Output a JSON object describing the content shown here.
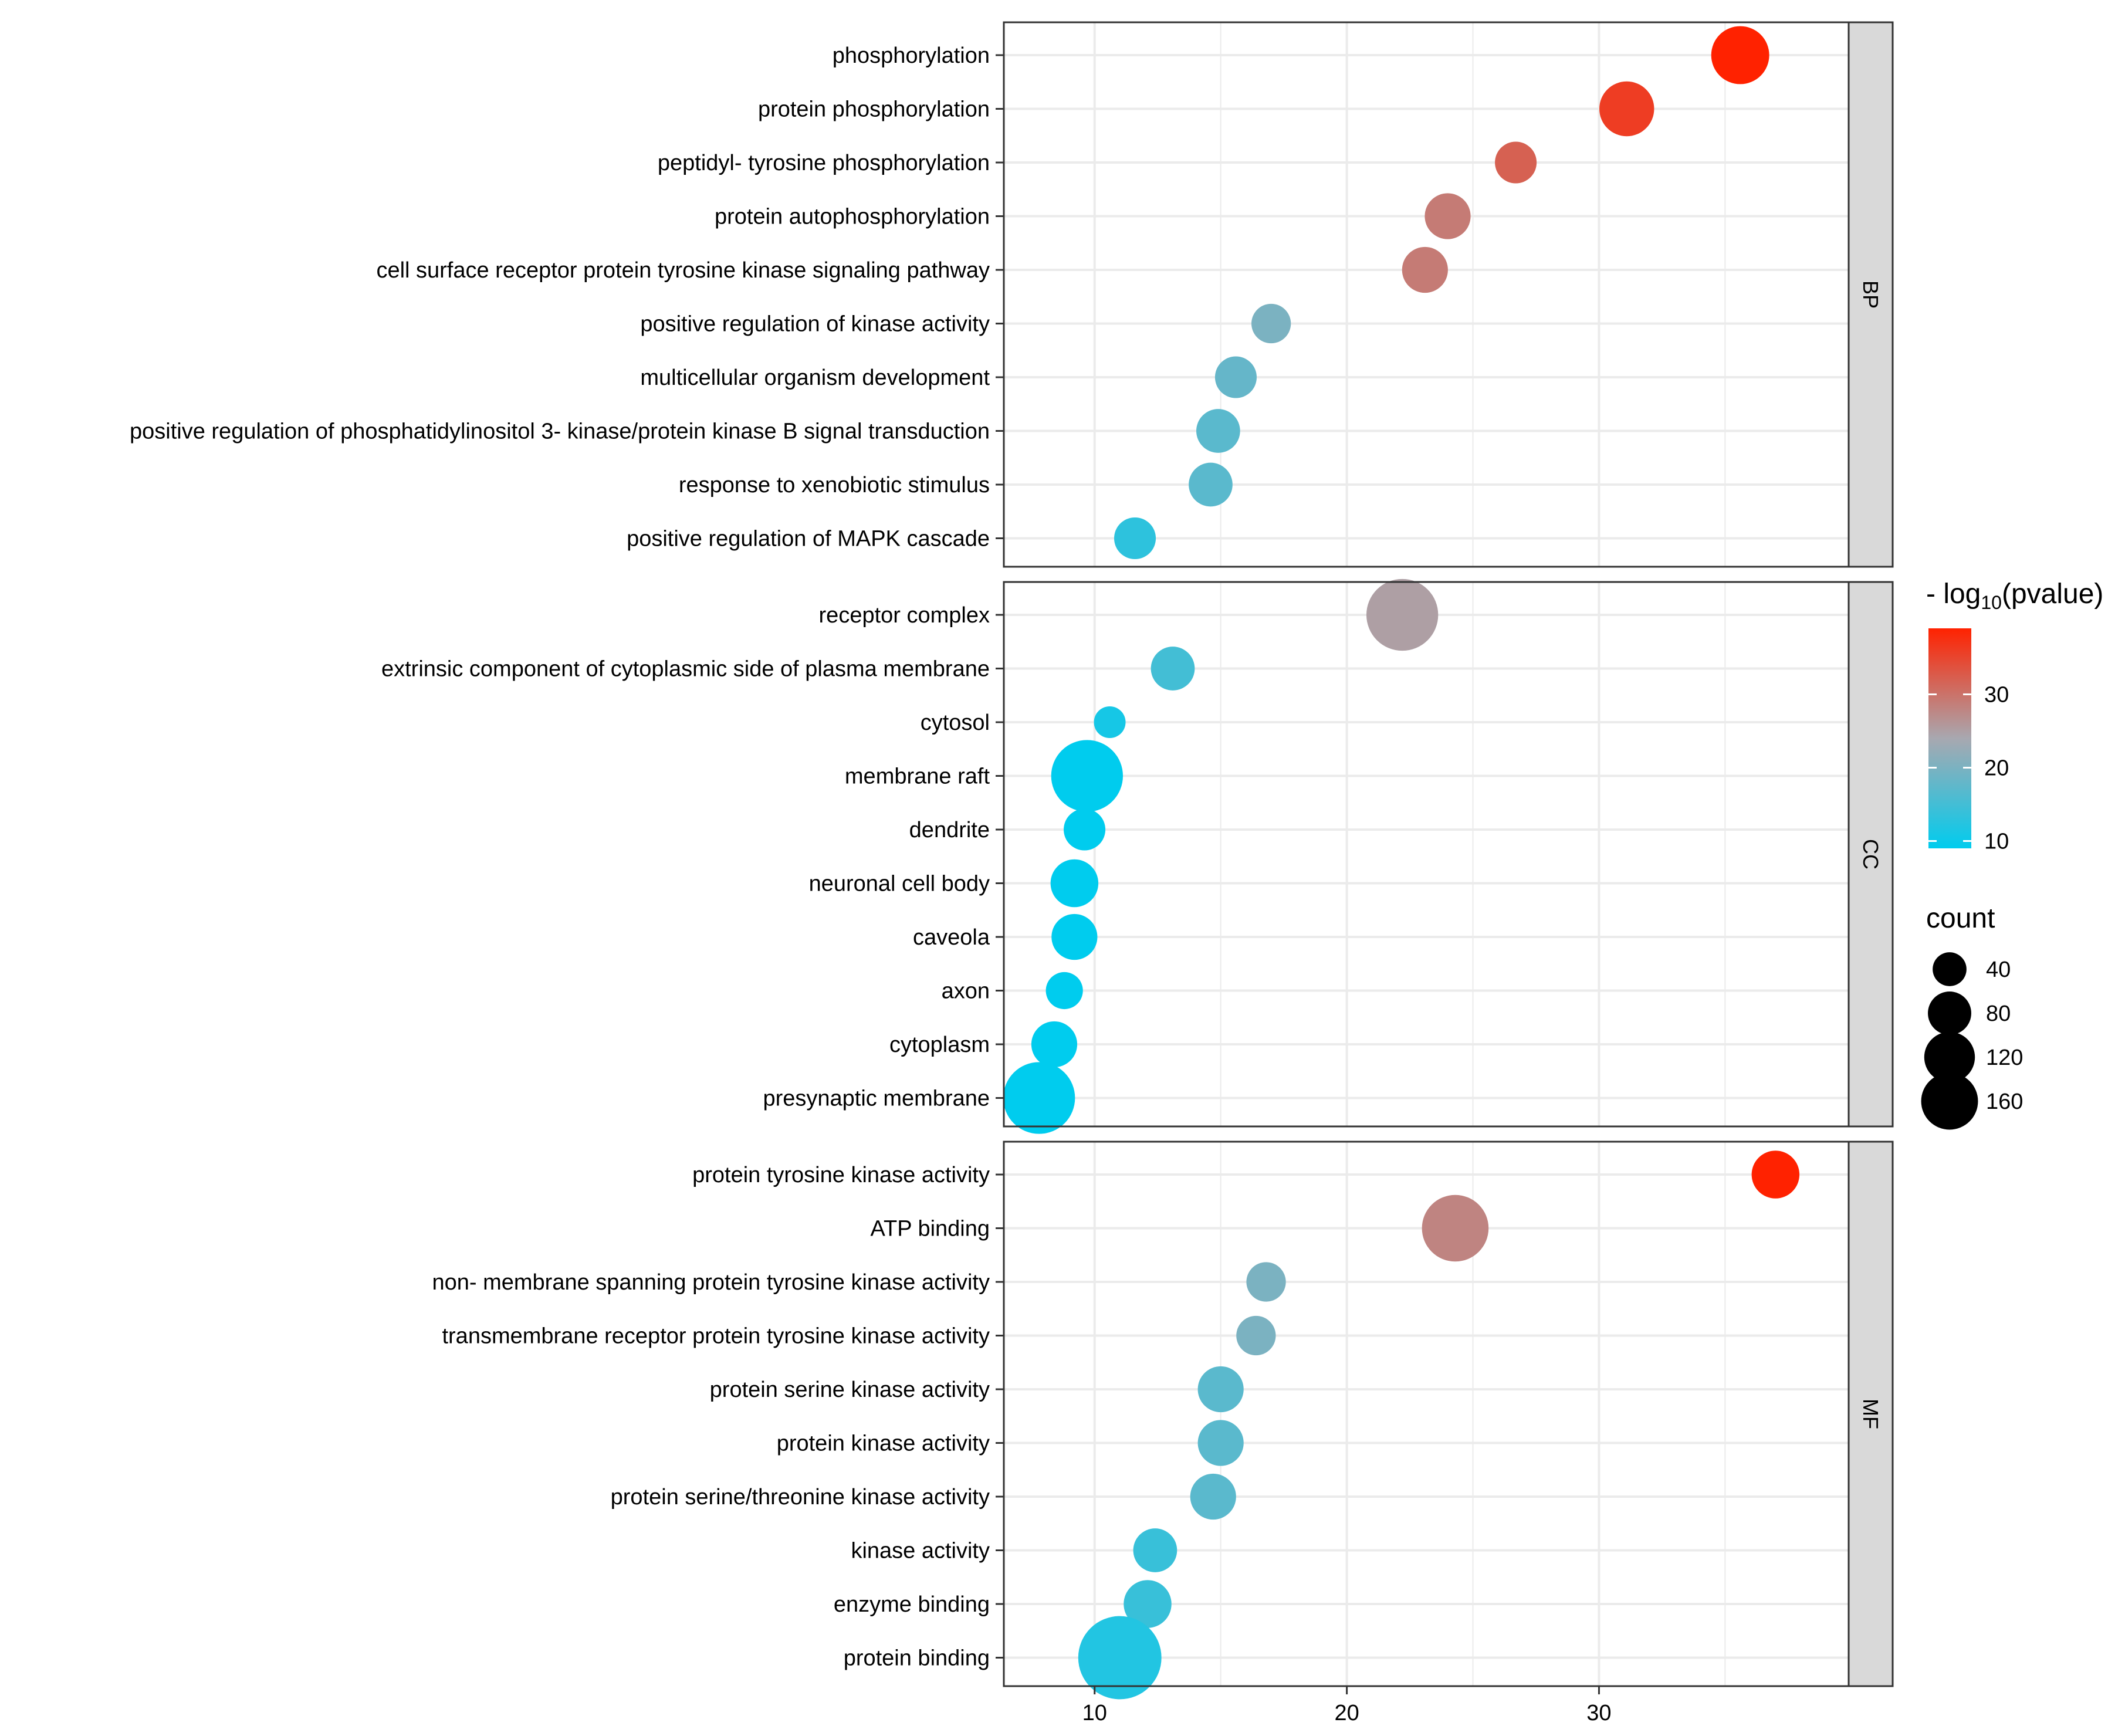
{
  "chart_data": {
    "type": "scatter",
    "x_ticks": [
      10,
      20,
      30
    ],
    "xlim": [
      6.4,
      39.9
    ],
    "grid": true,
    "legend_placement": "right",
    "color_legend": {
      "title_prefix": "- log",
      "title_sub": "10",
      "title_suffix": "(pvalue)",
      "ticks": [
        10,
        20,
        30
      ],
      "range": [
        9,
        39
      ],
      "low_color": "#00CCEE",
      "mid_color": "#A8A8B0",
      "high_color": "#FF2200"
    },
    "size_legend": {
      "title": "count",
      "values": [
        40,
        80,
        120,
        160
      ]
    },
    "facets": [
      {
        "name": "BP",
        "terms": [
          {
            "label": "phosphorylation",
            "x": 35.6,
            "count": 90,
            "p": 39
          },
          {
            "label": "protein phosphorylation",
            "x": 31.1,
            "count": 80,
            "p": 36
          },
          {
            "label": "peptidyl- tyrosine phosphorylation",
            "x": 26.7,
            "count": 45,
            "p": 32
          },
          {
            "label": "protein autophosphorylation",
            "x": 24.0,
            "count": 55,
            "p": 29
          },
          {
            "label": "cell surface receptor protein tyrosine kinase signaling pathway",
            "x": 23.1,
            "count": 55,
            "p": 29
          },
          {
            "label": "positive regulation of kinase activity",
            "x": 17.0,
            "count": 40,
            "p": 20
          },
          {
            "label": "multicellular organism development",
            "x": 15.6,
            "count": 45,
            "p": 18
          },
          {
            "label": "positive regulation of phosphatidylinositol 3- kinase/protein kinase B signal transduction",
            "x": 14.9,
            "count": 50,
            "p": 17
          },
          {
            "label": "response to xenobiotic stimulus",
            "x": 14.6,
            "count": 50,
            "p": 17
          },
          {
            "label": "positive regulation of MAPK cascade",
            "x": 11.6,
            "count": 45,
            "p": 13
          }
        ]
      },
      {
        "name": "CC",
        "terms": [
          {
            "label": "receptor complex",
            "x": 22.2,
            "count": 140,
            "p": 25
          },
          {
            "label": "extrinsic component of cytoplasmic side of plasma membrane",
            "x": 13.1,
            "count": 50,
            "p": 15
          },
          {
            "label": "cytosol",
            "x": 10.6,
            "count": 25,
            "p": 11
          },
          {
            "label": "membrane raft",
            "x": 9.7,
            "count": 140,
            "p": 9
          },
          {
            "label": "dendrite",
            "x": 9.6,
            "count": 45,
            "p": 9
          },
          {
            "label": "neuronal cell body",
            "x": 9.2,
            "count": 60,
            "p": 9
          },
          {
            "label": "caveola",
            "x": 9.2,
            "count": 55,
            "p": 9
          },
          {
            "label": "axon",
            "x": 8.8,
            "count": 35,
            "p": 9
          },
          {
            "label": "cytoplasm",
            "x": 8.4,
            "count": 55,
            "p": 9
          },
          {
            "label": "presynaptic membrane",
            "x": 7.8,
            "count": 140,
            "p": 9
          }
        ]
      },
      {
        "name": "MF",
        "terms": [
          {
            "label": "protein tyrosine kinase activity",
            "x": 37.0,
            "count": 60,
            "p": 40
          },
          {
            "label": "ATP binding",
            "x": 24.3,
            "count": 120,
            "p": 28
          },
          {
            "label": "non- membrane spanning protein tyrosine kinase activity",
            "x": 16.8,
            "count": 40,
            "p": 20
          },
          {
            "label": "transmembrane receptor protein tyrosine kinase activity",
            "x": 16.4,
            "count": 40,
            "p": 20
          },
          {
            "label": "protein serine kinase activity",
            "x": 15.0,
            "count": 55,
            "p": 17
          },
          {
            "label": "protein kinase activity",
            "x": 15.0,
            "count": 55,
            "p": 17
          },
          {
            "label": "protein serine/threonine kinase activity",
            "x": 14.7,
            "count": 55,
            "p": 17
          },
          {
            "label": "kinase activity",
            "x": 12.4,
            "count": 50,
            "p": 14
          },
          {
            "label": "enzyme binding",
            "x": 12.1,
            "count": 60,
            "p": 14
          },
          {
            "label": "protein binding",
            "x": 11.0,
            "count": 190,
            "p": 12
          }
        ]
      }
    ]
  }
}
